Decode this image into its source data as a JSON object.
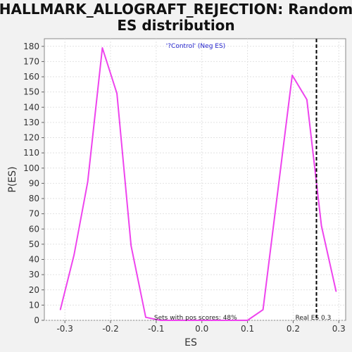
{
  "chart_data": {
    "type": "line",
    "title_line1": "HALLMARK_ALLOGRAFT_REJECTION: Random",
    "title_line2": "ES distribution",
    "subtitle": "'?Control' (Neg ES)",
    "xlabel": "ES",
    "ylabel": "P(ES)",
    "xlim": [
      -0.345,
      0.315
    ],
    "ylim": [
      0,
      185
    ],
    "x_ticks": [
      -0.3,
      -0.2,
      -0.1,
      0.0,
      0.1,
      0.2,
      0.3
    ],
    "x_tick_labels": [
      "-0.3",
      "-0.2",
      "-0.1",
      "0.0",
      "0.1",
      "0.2",
      "0.3"
    ],
    "y_ticks": [
      0,
      10,
      20,
      30,
      40,
      50,
      60,
      70,
      80,
      90,
      100,
      110,
      120,
      130,
      140,
      150,
      160,
      170,
      180
    ],
    "grid": true,
    "series": [
      {
        "color": "#ee44ee",
        "x": [
          -0.31,
          -0.28,
          -0.25,
          -0.218,
          -0.186,
          -0.155,
          -0.123,
          -0.091,
          0.0,
          0.1,
          0.134,
          0.198,
          0.23,
          0.262,
          0.294
        ],
        "y": [
          7,
          43,
          91,
          179,
          149,
          49,
          2,
          0,
          0,
          0,
          7,
          161,
          145,
          62,
          19
        ]
      }
    ],
    "reference_line": {
      "x": 0.251,
      "color": "#000000",
      "style": "dashed",
      "label": "Real ES 0.3"
    },
    "annotations": {
      "pos_scores": "Sets with pos scores: 48%"
    },
    "colors": {
      "subtitle": "#2222cc",
      "curve": "#ee44ee",
      "plot_bg": "#ffffff",
      "page_bg": "#f2f2f2"
    }
  }
}
